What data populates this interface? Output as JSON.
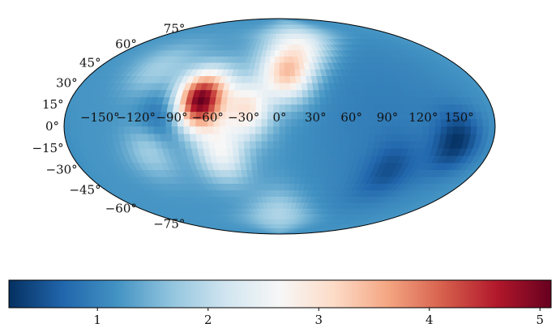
{
  "chart_data": {
    "type": "heatmap",
    "projection": "mollweide",
    "title": "",
    "xlabel": "",
    "ylabel": "",
    "longitude_ticks": [
      "−150°",
      "−120°",
      "−90°",
      "−60°",
      "−30°",
      "0°",
      "30°",
      "60°",
      "90°",
      "120°",
      "150°"
    ],
    "longitude_values": [
      -150,
      -120,
      -90,
      -60,
      -30,
      0,
      30,
      60,
      90,
      120,
      150
    ],
    "latitude_ticks": [
      "75°",
      "60°",
      "45°",
      "30°",
      "15°",
      "0°",
      "−15°",
      "−30°",
      "−45°",
      "−60°",
      "−75°"
    ],
    "latitude_values": [
      75,
      60,
      45,
      30,
      15,
      0,
      -15,
      -30,
      -45,
      -60,
      -75
    ],
    "colormap": "RdBu_r",
    "colorbar": {
      "min": 0.2,
      "max": 5.1,
      "ticks": [
        1,
        2,
        3,
        4,
        5
      ],
      "tick_labels": [
        "1",
        "2",
        "3",
        "4",
        "5"
      ],
      "colors": [
        "#053061",
        "#2166ac",
        "#4393c3",
        "#92c5de",
        "#d1e5f0",
        "#f7f7f7",
        "#fddbc7",
        "#f4a582",
        "#d6604d",
        "#b2182b",
        "#67001f"
      ]
    },
    "background_value": 1.2,
    "features": [
      {
        "lon": -68,
        "lat": 18,
        "value": 5.1
      },
      {
        "lon": 8,
        "lat": 38,
        "value": 3.3
      },
      {
        "lon": -27,
        "lat": 12,
        "value": 2.9
      },
      {
        "lon": -50,
        "lat": -18,
        "value": 2.5
      },
      {
        "lon": 30,
        "lat": 62,
        "value": 2.3
      },
      {
        "lon": -110,
        "lat": -15,
        "value": 1.9
      },
      {
        "lon": 0,
        "lat": -65,
        "value": 1.9
      },
      {
        "lon": -120,
        "lat": 40,
        "value": 1.8
      },
      {
        "lon": -100,
        "lat": 5,
        "value": 0.6
      },
      {
        "lon": 150,
        "lat": -10,
        "value": 0.35
      },
      {
        "lon": 100,
        "lat": -30,
        "value": 0.7
      }
    ],
    "grid": false
  }
}
